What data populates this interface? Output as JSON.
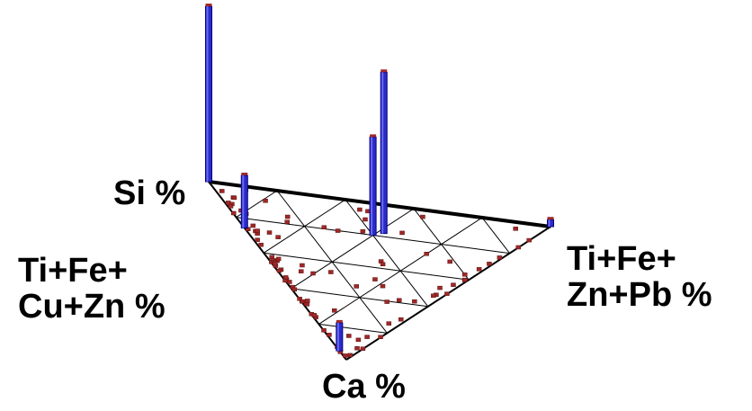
{
  "labels": {
    "si": "Si %",
    "left_line1": "Ti+Fe+",
    "left_line2": "Cu+Zn %",
    "right_line1": "Ti+Fe+",
    "right_line2": "Zn+Pb %",
    "ca": "Ca %"
  },
  "colors": {
    "bar": "#2b2bc8",
    "bar_edge": "#000080",
    "point": "#a02828",
    "grid": "#000000"
  },
  "chart_data": {
    "type": "3d-ternary-histogram",
    "title": "",
    "vertices": [
      "Si %",
      "Ti+Fe+Zn+Pb %",
      "Ca %"
    ],
    "grid_divisions": 5,
    "tall_bars": [
      {
        "si": 1.0,
        "tizn": 0.0,
        "ca": 0.0,
        "height": 1.0
      },
      {
        "si": 0.38,
        "tizn": 0.44,
        "ca": 0.18,
        "height": 0.92
      },
      {
        "si": 0.4,
        "tizn": 0.4,
        "ca": 0.2,
        "height": 0.56
      },
      {
        "si": 0.74,
        "tizn": 0.0,
        "ca": 0.26,
        "height": 0.3
      },
      {
        "si": 0.05,
        "tizn": 0.0,
        "ca": 0.95,
        "height": 0.16
      },
      {
        "si": 0.0,
        "tizn": 1.0,
        "ca": 0.0,
        "height": 0.04
      }
    ],
    "edge_point_counts": {
      "si_ca_edge": 45,
      "ca_tizn_edge": 18,
      "interior": 40
    }
  }
}
